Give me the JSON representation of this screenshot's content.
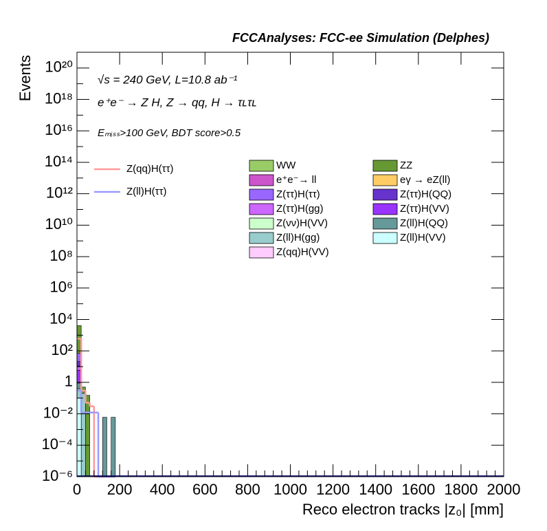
{
  "chart_data": {
    "type": "stacked_histogram",
    "title": "FCCAnalyses: FCC-ee Simulation (Delphes)",
    "annotations": [
      "√s = 240 GeV, L=10.8 ab⁻¹",
      "e⁺e⁻ → Z H, Z → qq, H → τʟτʟ",
      "Eₘᵢₛₛ>100 GeV, BDT score>0.5"
    ],
    "xlabel": "Reco electron tracks |z₀| [mm]",
    "ylabel": "Events",
    "log_y": true,
    "xlim": [
      0,
      2000
    ],
    "ylim": [
      1e-06,
      1e+21
    ],
    "xticks": [
      0,
      200,
      400,
      600,
      800,
      1000,
      1200,
      1400,
      1600,
      1800,
      2000
    ],
    "yticks": [
      {
        "value": 1e-06,
        "label": "10⁻⁶"
      },
      {
        "value": 0.0001,
        "label": "10⁻⁴"
      },
      {
        "value": 0.01,
        "label": "10⁻²"
      },
      1,
      {
        "value": 100,
        "label": "10²"
      },
      {
        "value": 10000.0,
        "label": "10⁴"
      },
      {
        "value": 1000000.0,
        "label": "10⁶"
      },
      {
        "value": 100000000.0,
        "label": "10⁸"
      },
      {
        "value": 10000000000.0,
        "label": "10¹⁰"
      },
      {
        "value": 1000000000000.0,
        "label": "10¹²"
      },
      {
        "value": 100000000000000.0,
        "label": "10¹⁴"
      },
      {
        "value": 1e+16,
        "label": "10¹⁶"
      },
      {
        "value": 1e+18,
        "label": "10¹⁸"
      },
      {
        "value": 1e+20,
        "label": "10²⁰"
      }
    ],
    "bins": [
      0,
      20,
      40,
      60,
      80,
      100,
      120,
      140,
      160,
      180
    ],
    "series": [
      {
        "name": "WW",
        "color": "#99cc66",
        "values": [
          0,
          0,
          0,
          0,
          0,
          0,
          0,
          0,
          0
        ]
      },
      {
        "name": "ZZ",
        "color": "#669933",
        "values": [
          4000,
          0.3,
          0.15,
          0,
          0,
          0,
          0,
          0,
          0
        ]
      },
      {
        "name": "e⁺e⁻→ ll",
        "color": "#cc55cc",
        "values": [
          0,
          0,
          0,
          0,
          0,
          0,
          0,
          0,
          0
        ]
      },
      {
        "name": "eγ → eZ(ll)",
        "color": "#ffcc66",
        "values": [
          0,
          0,
          0,
          0,
          0,
          0,
          0,
          0,
          0
        ]
      },
      {
        "name": "Z(ττ)H(ττ)",
        "color": "#9966ff",
        "values": [
          50,
          0,
          0,
          0,
          0,
          0,
          0,
          0,
          0
        ]
      },
      {
        "name": "Z(ττ)H(QQ)",
        "color": "#6633cc",
        "values": [
          10,
          0,
          0,
          0,
          0,
          0,
          0,
          0,
          0
        ]
      },
      {
        "name": "Z(ττ)H(gg)",
        "color": "#cc66ff",
        "values": [
          5,
          0,
          0,
          0,
          0,
          0,
          0,
          0,
          0
        ]
      },
      {
        "name": "Z(ττ)H(VV)",
        "color": "#9933ff",
        "values": [
          5,
          0,
          0,
          0,
          0,
          0,
          0,
          0,
          0
        ]
      },
      {
        "name": "Z(νν)H(VV)",
        "color": "#ccffcc",
        "values": [
          0,
          0,
          0,
          0,
          0,
          0,
          0,
          0,
          0
        ]
      },
      {
        "name": "Z(ll)H(QQ)",
        "color": "#669999",
        "values": [
          0.5,
          0,
          0,
          0,
          0,
          0,
          0.006,
          0,
          0.006
        ]
      },
      {
        "name": "Z(ll)H(gg)",
        "color": "#99cccc",
        "values": [
          0.3,
          0.2,
          0,
          0,
          0,
          0,
          0,
          0,
          0
        ]
      },
      {
        "name": "Z(ll)H(VV)",
        "color": "#ccffff",
        "values": [
          0.1,
          0,
          0,
          0,
          0,
          0,
          0,
          0,
          0
        ]
      },
      {
        "name": "Z(qq)H(VV)",
        "color": "#ffccff",
        "values": [
          0,
          0,
          0,
          0,
          0,
          0,
          0,
          0,
          0
        ]
      }
    ],
    "signals": [
      {
        "name": "Z(qq)H(ττ)",
        "color": "#ff9999",
        "values": [
          600,
          0.3,
          0.05,
          0.03,
          0,
          0,
          0,
          0,
          0
        ]
      },
      {
        "name": "Z(ll)H(ττ)",
        "color": "#9999ff",
        "values": [
          0.3,
          0.012,
          0.012,
          0.012,
          0.012,
          0,
          0,
          0,
          0
        ]
      }
    ]
  }
}
